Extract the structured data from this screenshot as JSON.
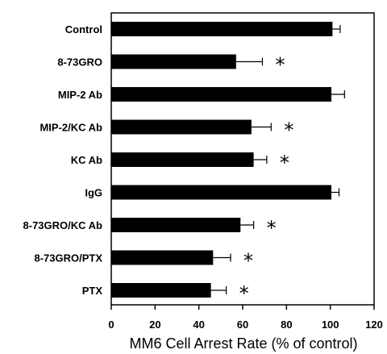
{
  "chart_data": {
    "type": "bar",
    "orientation": "horizontal",
    "xlabel": "MM6 Cell Arrest Rate (% of control)",
    "xlim": [
      0,
      120
    ],
    "xticks": [
      0,
      20,
      40,
      60,
      80,
      100,
      120
    ],
    "grid": false,
    "categories": [
      "Control",
      "8-73GRO",
      "MIP-2 Ab",
      "MIP-2/KC Ab",
      "KC Ab",
      "IgG",
      "8-73GRO/KC Ab",
      "8-73GRO/PTX",
      "PTX"
    ],
    "values": [
      101,
      57,
      100.5,
      64,
      65,
      100.5,
      59,
      46.5,
      45.5
    ],
    "errors": [
      3.5,
      12,
      6,
      9,
      6,
      3.5,
      6,
      8,
      7
    ],
    "significance_marker": "*",
    "significant": [
      false,
      true,
      false,
      true,
      true,
      false,
      true,
      true,
      true
    ],
    "bar_color": "#000000"
  }
}
